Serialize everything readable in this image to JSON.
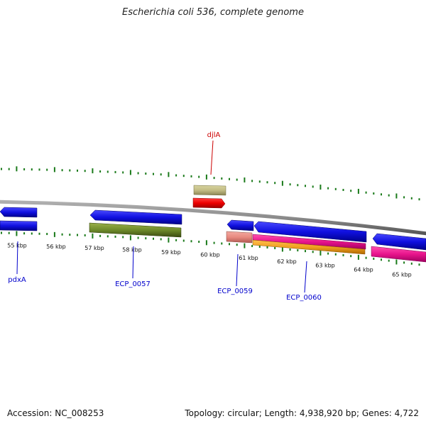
{
  "title": "Escherichia coli 536, complete genome",
  "accession": "Accession: NC_008253",
  "topology": "Topology: circular; Length: 4,938,920 bp; Genes: 4,722",
  "kbp_ticks": [
    "55 kbp",
    "56 kbp",
    "57 kbp",
    "58 kbp",
    "59 kbp",
    "60 kbp",
    "61 kbp",
    "62 kbp",
    "63 kbp",
    "64 kbp",
    "65 kbp"
  ],
  "gene_labels": [
    {
      "text": "djlA",
      "color": "#cc0000"
    },
    {
      "text": "pdxA",
      "color": "#0000cc"
    },
    {
      "text": "ECP_0057",
      "color": "#0000cc"
    },
    {
      "text": "ECP_0059",
      "color": "#0000cc"
    },
    {
      "text": "ECP_0060",
      "color": "#0000cc"
    }
  ],
  "colors": {
    "backbone": "#8a8a8a",
    "tick": "#1a7a1a",
    "cds_blue": "#1010e0",
    "cds_olive": "#6e8a2a",
    "cds_khaki": "#c2bc84",
    "cds_red": "#ee0000",
    "cds_salmon": "#e88a80",
    "cds_magenta": "#e8148c",
    "cds_orange": "#f0a020"
  }
}
